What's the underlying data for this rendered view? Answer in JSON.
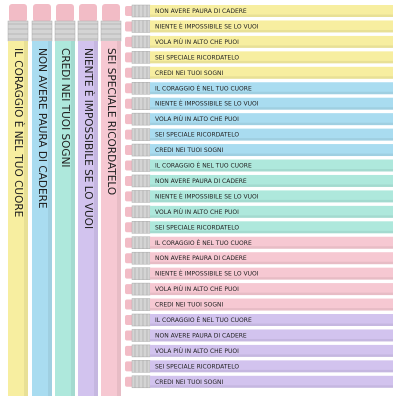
{
  "vertical_pencils": [
    {
      "text": "IL CORAGGIO È NEL TUO CUORE",
      "color": "#f7eea0"
    },
    {
      "text": "NON AVERE PAURA DI CADERE",
      "color": "#a9dcf0"
    },
    {
      "text": "CREDI NEI TUOI SOGNI",
      "color": "#aee8dc"
    },
    {
      "text": "NIENTE È IMPOSSIBILE SE LO VUOI",
      "color": "#d2c3ee"
    },
    {
      "text": "SEI SPECIALE RICORDATELO",
      "color": "#f6c8d2"
    }
  ],
  "horizontal_pencils": [
    {
      "text": "NON AVERE PAURA DI CADERE",
      "color": "#f7eea0"
    },
    {
      "text": "NIENTE È IMPOSSIBILE SE LO VUOI",
      "color": "#f7eea0"
    },
    {
      "text": "VOLA PIÙ IN ALTO CHE PUOI",
      "color": "#f7eea0"
    },
    {
      "text": "SEI SPECIALE RICORDATELO",
      "color": "#f7eea0"
    },
    {
      "text": "CREDI NEI TUOI SOGNI",
      "color": "#f7eea0"
    },
    {
      "text": "IL CORAGGIO È NEL TUO CUORE",
      "color": "#a9dcf0"
    },
    {
      "text": "NIENTE È IMPOSSIBILE SE LO VUOI",
      "color": "#a9dcf0"
    },
    {
      "text": "VOLA PIÙ IN ALTO CHE PUOI",
      "color": "#a9dcf0"
    },
    {
      "text": "SEI SPECIALE RICORDATELO",
      "color": "#a9dcf0"
    },
    {
      "text": "CREDI NEI TUOI SOGNI",
      "color": "#a9dcf0"
    },
    {
      "text": "IL CORAGGIO È NEL TUO CUORE",
      "color": "#aee8dc"
    },
    {
      "text": "NON AVERE PAURA DI CADERE",
      "color": "#aee8dc"
    },
    {
      "text": "NIENTE È IMPOSSIBILE SE LO VUOI",
      "color": "#aee8dc"
    },
    {
      "text": "VOLA PIÙ IN ALTO CHE PUOI",
      "color": "#aee8dc"
    },
    {
      "text": "SEI SPECIALE RICORDATELO",
      "color": "#aee8dc"
    },
    {
      "text": "IL CORAGGIO È NEL TUO CUORE",
      "color": "#f6c8d2"
    },
    {
      "text": "NON AVERE PAURA DI CADERE",
      "color": "#f6c8d2"
    },
    {
      "text": "NIENTE È IMPOSSIBILE SE LO VUOI",
      "color": "#f6c8d2"
    },
    {
      "text": "VOLA PIÙ IN ALTO CHE PUOI",
      "color": "#f6c8d2"
    },
    {
      "text": "CREDI NEI TUOI SOGNI",
      "color": "#f6c8d2"
    },
    {
      "text": "IL CORAGGIO È NEL TUO CUORE",
      "color": "#d2c3ee"
    },
    {
      "text": "NON AVERE PAURA DI CADERE",
      "color": "#d2c3ee"
    },
    {
      "text": "VOLA PIÙ IN ALTO CHE PUOI",
      "color": "#d2c3ee"
    },
    {
      "text": "SEI SPECIALE RICORDATELO",
      "color": "#d2c3ee"
    },
    {
      "text": "CREDI NEI TUOI SOGNI",
      "color": "#d2c3ee"
    }
  ]
}
